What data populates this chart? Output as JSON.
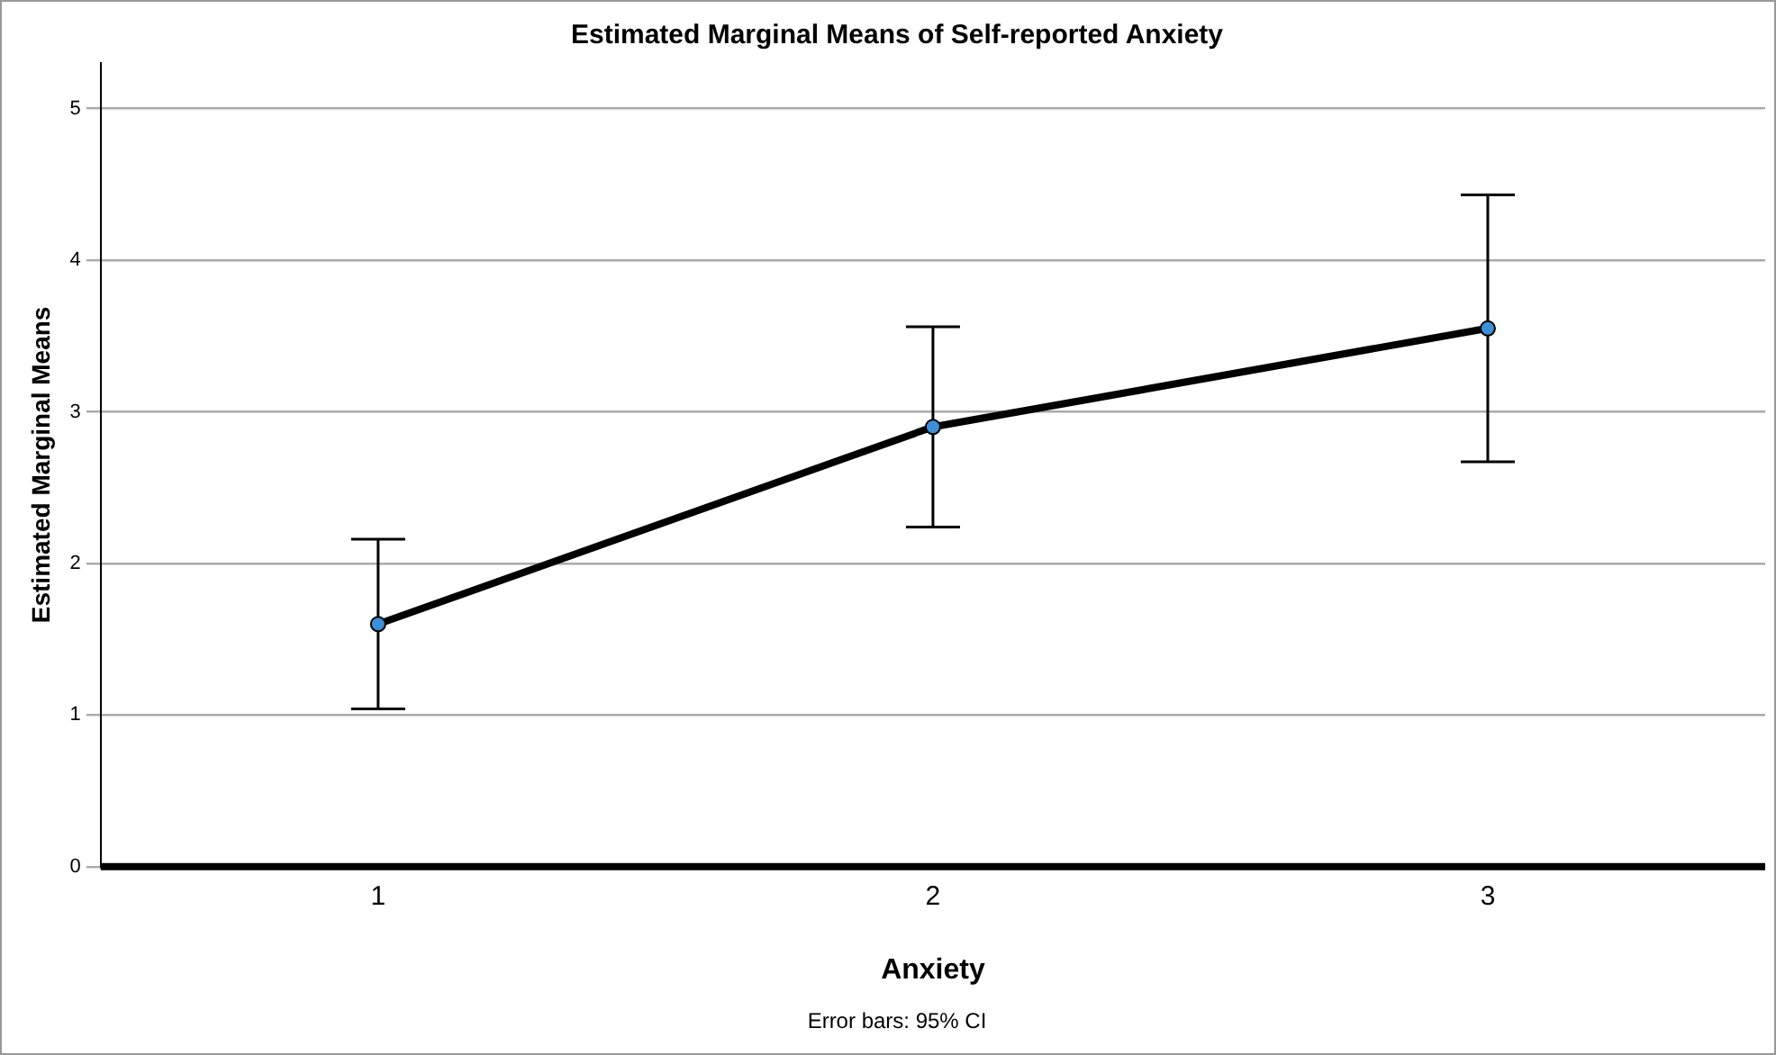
{
  "chart_data": {
    "type": "line",
    "title": "Estimated Marginal Means of Self-reported Anxiety",
    "xlabel": "Anxiety",
    "ylabel": "Estimated Marginal Means",
    "categories": [
      "1",
      "2",
      "3"
    ],
    "series": [
      {
        "color": "#000000",
        "values": [
          1.6,
          2.9,
          3.55
        ],
        "errors": [
          [
            1.04,
            2.16
          ],
          [
            2.24,
            3.56
          ],
          [
            2.67,
            4.43
          ]
        ]
      }
    ],
    "ylim": [
      0,
      5.3
    ],
    "yticks": [
      0,
      1,
      2,
      3,
      4,
      5
    ],
    "grid": "y",
    "legend": false,
    "marker": "circle",
    "line_style": "solid",
    "annotations": [
      "Error bars: 95% CI"
    ]
  }
}
